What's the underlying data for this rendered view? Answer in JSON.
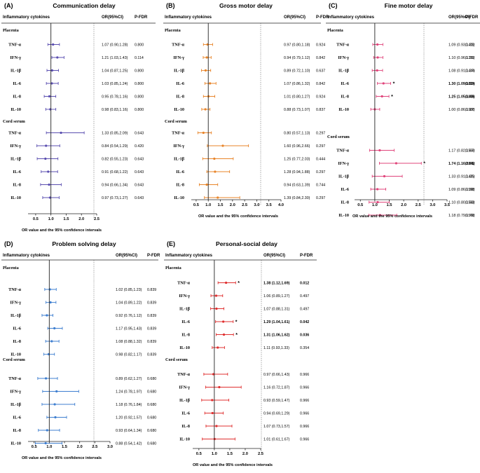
{
  "chart_data": [
    {
      "type": "forest",
      "panel_label": "(A)",
      "title": "Communication delay",
      "header": {
        "group": "Inflammatory cytokines",
        "or_col": "OR(95%CI)",
        "p_col": "P-FDR"
      },
      "xlabel": "OR value and the 95% confidence intervals",
      "xlim": [
        0.25,
        2.5
      ],
      "xticks": [
        "0.5",
        "1.0",
        "1.5",
        "2.0",
        "2.5"
      ],
      "color": "#5b4fb0",
      "sections": [
        {
          "name": "Placenta",
          "rows": [
            {
              "label": "TNF-α",
              "or": 1.07,
              "lo": 0.9,
              "hi": 1.28,
              "ci": "1.07 (0.90,1.28)",
              "p": "0.800",
              "bold": false
            },
            {
              "label": "IFN-γ",
              "or": 1.21,
              "lo": 1.03,
              "hi": 1.43,
              "ci": "1.21 (1.03,1.43)",
              "p": "0.114",
              "bold": false
            },
            {
              "label": "IL-1β",
              "or": 1.04,
              "lo": 0.87,
              "hi": 1.25,
              "ci": "1.04 (0.87,1.25)",
              "p": "0.800",
              "bold": false
            },
            {
              "label": "IL-6",
              "or": 1.03,
              "lo": 0.85,
              "hi": 1.24,
              "ci": "1.03 (0.85,1.24)",
              "p": "0.800",
              "bold": false
            },
            {
              "label": "IL-8",
              "or": 0.95,
              "lo": 0.78,
              "hi": 1.16,
              "ci": "0.95 (0.78,1.16)",
              "p": "0.800",
              "bold": false
            },
            {
              "label": "IL-10",
              "or": 0.98,
              "lo": 0.83,
              "hi": 1.16,
              "ci": "0.98 (0.83,1.16)",
              "p": "0.800",
              "bold": false
            }
          ]
        },
        {
          "name": "Cord serum",
          "rows": [
            {
              "label": "TNF-α",
              "or": 1.33,
              "lo": 0.85,
              "hi": 2.09,
              "ci": "1.33 (0.85,2.09)",
              "p": "0.643",
              "bold": false
            },
            {
              "label": "IFN-γ",
              "or": 0.84,
              "lo": 0.54,
              "hi": 1.29,
              "ci": "0.84 (0.54,1.29)",
              "p": "0.420",
              "bold": false
            },
            {
              "label": "IL-1β",
              "or": 0.82,
              "lo": 0.55,
              "hi": 1.23,
              "ci": "0.82 (0.55,1.23)",
              "p": "0.643",
              "bold": false
            },
            {
              "label": "IL-6",
              "or": 0.91,
              "lo": 0.68,
              "hi": 1.22,
              "ci": "0.91 (0.68,1.22)",
              "p": "0.643",
              "bold": false
            },
            {
              "label": "IL-8",
              "or": 0.94,
              "lo": 0.66,
              "hi": 1.34,
              "ci": "0.94 (0.66,1.34)",
              "p": "0.643",
              "bold": false
            },
            {
              "label": "IL-10",
              "or": 0.97,
              "lo": 0.73,
              "hi": 1.27,
              "ci": "0.97 (0.73,1.27)",
              "p": "0.643",
              "bold": false
            }
          ]
        }
      ]
    },
    {
      "type": "forest",
      "panel_label": "(B)",
      "title": "Gross motor delay",
      "header": {
        "group": "Inflammatory cytokines",
        "or_col": "OR(95%CI)",
        "p_col": "P-FDR"
      },
      "xlabel": "OR value and the 95% confidence intervals",
      "xlim": [
        0.3,
        4.0
      ],
      "xticks": [
        "0.5",
        "1.0",
        "1.5",
        "2.0",
        "2.5",
        "3.0",
        "3.5",
        "4.0"
      ],
      "color": "#e8852a",
      "sections": [
        {
          "name": "Placenta",
          "rows": [
            {
              "label": "TNF-α",
              "or": 0.97,
              "lo": 0.8,
              "hi": 1.18,
              "ci": "0.97 (0.80,1.18)",
              "p": "0.924",
              "bold": false
            },
            {
              "label": "IFN-γ",
              "or": 0.94,
              "lo": 0.79,
              "hi": 1.12,
              "ci": "0.94 (0.79,1.12)",
              "p": "0.842",
              "bold": false
            },
            {
              "label": "IL-1β",
              "or": 0.89,
              "lo": 0.72,
              "hi": 1.1,
              "ci": "0.89 (0.72,1.10)",
              "p": "0.637",
              "bold": false
            },
            {
              "label": "IL-6",
              "or": 1.07,
              "lo": 0.86,
              "hi": 1.32,
              "ci": "1.07 (0.86,1.32)",
              "p": "0.842",
              "bold": false
            },
            {
              "label": "IL-8",
              "or": 1.01,
              "lo": 0.8,
              "hi": 1.27,
              "ci": "1.01 (0.80,1.27)",
              "p": "0.924",
              "bold": false
            },
            {
              "label": "IL-10",
              "or": 0.88,
              "lo": 0.73,
              "hi": 1.07,
              "ci": "0.88 (0.73,1.07)",
              "p": "0.837",
              "bold": false
            }
          ]
        },
        {
          "name": "Cord serum",
          "rows": [
            {
              "label": "TNF-α",
              "or": 0.8,
              "lo": 0.57,
              "hi": 1.13,
              "ci": "0.80 (0.57,1.13)",
              "p": "0.297",
              "bold": false
            },
            {
              "label": "IFN-γ",
              "or": 1.6,
              "lo": 0.96,
              "hi": 2.66,
              "ci": "1.60 (0.96,2.66)",
              "p": "0.297",
              "bold": false
            },
            {
              "label": "IL-1β",
              "or": 1.25,
              "lo": 0.77,
              "hi": 2.03,
              "ci": "1.25 (0.77,2.03)",
              "p": "0.444",
              "bold": false
            },
            {
              "label": "IL-6",
              "or": 1.28,
              "lo": 0.94,
              "hi": 1.88,
              "ci": "1.28 (0.94,1.88)",
              "p": "0.297",
              "bold": false
            },
            {
              "label": "IL-8",
              "or": 0.94,
              "lo": 0.63,
              "hi": 1.39,
              "ci": "0.94 (0.63,1.39)",
              "p": "0.744",
              "bold": false
            },
            {
              "label": "IL-10",
              "or": 1.39,
              "lo": 0.84,
              "hi": 2.3,
              "ci": "1.39 (0.84,2.30)",
              "p": "0.297",
              "bold": false
            }
          ]
        }
      ]
    },
    {
      "type": "forest",
      "panel_label": "(C)",
      "title": "Fine motor delay",
      "header": {
        "group": "Inflammatory cytokines",
        "or_col": "OR(95%CI)",
        "p_col": "P-FDR"
      },
      "xlabel": "OR value and the 95% confidence intervals",
      "xlim": [
        0.3,
        3.5
      ],
      "xticks": [
        "0.5",
        "1.0",
        "1.5",
        "2.0",
        "2.5",
        "3.0",
        "3.5"
      ],
      "color": "#e0457b",
      "star": "*",
      "sections": [
        {
          "name": "Placenta",
          "rows": [
            {
              "label": "TNF-α",
              "or": 1.09,
              "lo": 0.93,
              "hi": 1.28,
              "ci": "1.09 (0.93,1.28)",
              "p": "0.402",
              "bold": false
            },
            {
              "label": "IFN-γ",
              "or": 1.1,
              "lo": 0.96,
              "hi": 1.28,
              "ci": "1.10 (0.96,1.28)",
              "p": "0.352",
              "bold": false
            },
            {
              "label": "IL-1β",
              "or": 1.08,
              "lo": 0.91,
              "hi": 1.27,
              "ci": "1.08 (0.91,1.27)",
              "p": "0.444",
              "bold": false
            },
            {
              "label": "IL-6",
              "or": 1.3,
              "lo": 1.09,
              "hi": 1.55,
              "ci": "1.30 (1.09,1.55)",
              "p": "0.024",
              "bold": true
            },
            {
              "label": "IL-8",
              "or": 1.25,
              "lo": 1.05,
              "hi": 1.49,
              "ci": "1.25 (1.05,1.49)",
              "p": "0.036",
              "bold": true
            },
            {
              "label": "IL-10",
              "or": 1.0,
              "lo": 0.86,
              "hi": 1.17,
              "ci": "1.00 (0.86,1.17)",
              "p": "0.988",
              "bold": false
            }
          ]
        },
        {
          "name": "Cord serum",
          "rows": [
            {
              "label": "TNF-α",
              "or": 1.17,
              "lo": 0.82,
              "hi": 1.67,
              "ci": "1.17 (0.82,1.67)",
              "p": "0.568",
              "bold": false
            },
            {
              "label": "IFN-γ",
              "or": 1.74,
              "lo": 1.16,
              "hi": 2.61,
              "ci": "1.74 (1.16,2.61)",
              "p": "0.042",
              "bold": true
            },
            {
              "label": "IL-1β",
              "or": 1.33,
              "lo": 0.91,
              "hi": 1.95,
              "ci": "1.33 (0.91,1.95)",
              "p": "0.429",
              "bold": false
            },
            {
              "label": "IL-6",
              "or": 1.09,
              "lo": 0.86,
              "hi": 1.38,
              "ci": "1.09 (0.86,1.38)",
              "p": "0.568",
              "bold": false
            },
            {
              "label": "IL-8",
              "or": 1.1,
              "lo": 0.8,
              "hi": 1.5,
              "ci": "1.10 (0.80,1.50)",
              "p": "0.568",
              "bold": false
            },
            {
              "label": "IL-10",
              "or": 1.18,
              "lo": 0.79,
              "hi": 1.76,
              "ci": "1.18 (0.79,1.76)",
              "p": "0.568",
              "bold": false
            }
          ]
        }
      ]
    },
    {
      "type": "forest",
      "panel_label": "(D)",
      "title": "Problem solving delay",
      "header": {
        "group": "Inflammatory cytokines",
        "or_col": "OR(95%CI)",
        "p_col": "P-FDR"
      },
      "xlabel": "OR value and the 95% confidence intervals",
      "xlim": [
        0.3,
        3.0
      ],
      "xticks": [
        "0.5",
        "1.0",
        "1.5",
        "2.0",
        "2.5",
        "3.0"
      ],
      "color": "#3f7fd0",
      "sections": [
        {
          "name": "Placenta",
          "rows": [
            {
              "label": "TNF-α",
              "or": 1.02,
              "lo": 0.85,
              "hi": 1.23,
              "ci": "1.02 (0.85,1.23)",
              "p": "0.839",
              "bold": false
            },
            {
              "label": "IFN-γ",
              "or": 1.04,
              "lo": 0.89,
              "hi": 1.22,
              "ci": "1.04 (0.89,1.22)",
              "p": "0.839",
              "bold": false
            },
            {
              "label": "IL-1β",
              "or": 0.92,
              "lo": 0.76,
              "hi": 1.12,
              "ci": "0.92 (0.76,1.12)",
              "p": "0.839",
              "bold": false
            },
            {
              "label": "IL-6",
              "or": 1.17,
              "lo": 0.95,
              "hi": 1.43,
              "ci": "1.17 (0.95,1.43)",
              "p": "0.839",
              "bold": false
            },
            {
              "label": "IL-8",
              "or": 1.08,
              "lo": 0.88,
              "hi": 1.32,
              "ci": "1.08 (0.88,1.32)",
              "p": "0.839",
              "bold": false
            },
            {
              "label": "IL-10",
              "or": 0.98,
              "lo": 0.82,
              "hi": 1.17,
              "ci": "0.98 (0.82,1.17)",
              "p": "0.839",
              "bold": false
            }
          ]
        },
        {
          "name": "Cord serum",
          "rows": [
            {
              "label": "TNF-α",
              "or": 0.89,
              "lo": 0.62,
              "hi": 1.27,
              "ci": "0.89 (0.62,1.27)",
              "p": "0.680",
              "bold": false
            },
            {
              "label": "IFN-γ",
              "or": 1.24,
              "lo": 0.78,
              "hi": 1.97,
              "ci": "1.24 (0.78,1.97)",
              "p": "0.680",
              "bold": false
            },
            {
              "label": "IL-1β",
              "or": 1.18,
              "lo": 0.76,
              "hi": 1.84,
              "ci": "1.18 (0.76,1.84)",
              "p": "0.680",
              "bold": false
            },
            {
              "label": "IL-6",
              "or": 1.2,
              "lo": 0.92,
              "hi": 1.57,
              "ci": "1.20 (0.92,1.57)",
              "p": "0.680",
              "bold": false
            },
            {
              "label": "IL-8",
              "or": 0.93,
              "lo": 0.64,
              "hi": 1.34,
              "ci": "0.93 (0.64,1.34)",
              "p": "0.680",
              "bold": false
            },
            {
              "label": "IL-10",
              "or": 0.88,
              "lo": 0.54,
              "hi": 1.42,
              "ci": "0.88 (0.54,1.42)",
              "p": "0.680",
              "bold": false
            }
          ]
        }
      ]
    },
    {
      "type": "forest",
      "panel_label": "(E)",
      "title": "Personal-social delay",
      "header": {
        "group": "Inflammatory cytokines",
        "or_col": "OR(95%CI)",
        "p_col": "P-FDR"
      },
      "xlabel": "OR value and the 95% confidence intervals",
      "xlim": [
        0.3,
        2.5
      ],
      "xticks": [
        "0.5",
        "1.0",
        "1.5",
        "2.0",
        "2.5"
      ],
      "color": "#e03030",
      "star": "*",
      "sections": [
        {
          "name": "Placenta",
          "rows": [
            {
              "label": "TNF-α",
              "or": 1.38,
              "lo": 1.12,
              "hi": 1.69,
              "ci": "1.38 (1.12,1.69)",
              "p": "0.012",
              "bold": true
            },
            {
              "label": "IFN-γ",
              "or": 1.06,
              "lo": 0.89,
              "hi": 1.27,
              "ci": "1.06 (0.89,1.27)",
              "p": "0.497",
              "bold": false
            },
            {
              "label": "IL-1β",
              "or": 1.07,
              "lo": 0.88,
              "hi": 1.31,
              "ci": "1.07 (0.88,1.31)",
              "p": "0.497",
              "bold": false
            },
            {
              "label": "IL-6",
              "or": 1.29,
              "lo": 1.04,
              "hi": 1.61,
              "ci": "1.29 (1.04,1.61)",
              "p": "0.042",
              "bold": true
            },
            {
              "label": "IL-8",
              "or": 1.31,
              "lo": 1.06,
              "hi": 1.62,
              "ci": "1.31 (1.06,1.62)",
              "p": "0.036",
              "bold": true
            },
            {
              "label": "IL-10",
              "or": 1.11,
              "lo": 0.93,
              "hi": 1.33,
              "ci": "1.11 (0.93,1.33)",
              "p": "0.354",
              "bold": false
            }
          ]
        },
        {
          "name": "Cord serum",
          "rows": [
            {
              "label": "TNF-α",
              "or": 0.97,
              "lo": 0.66,
              "hi": 1.43,
              "ci": "0.97 (0.66,1.43)",
              "p": "0.966",
              "bold": false
            },
            {
              "label": "IFN-γ",
              "or": 1.16,
              "lo": 0.72,
              "hi": 1.87,
              "ci": "1.16 (0.72,1.87)",
              "p": "0.966",
              "bold": false
            },
            {
              "label": "IL-1β",
              "or": 0.93,
              "lo": 0.59,
              "hi": 1.47,
              "ci": "0.93 (0.59,1.47)",
              "p": "0.966",
              "bold": false
            },
            {
              "label": "IL-6",
              "or": 0.94,
              "lo": 0.69,
              "hi": 1.29,
              "ci": "0.94 (0.69,1.29)",
              "p": "0.966",
              "bold": false
            },
            {
              "label": "IL-8",
              "or": 1.07,
              "lo": 0.73,
              "hi": 1.57,
              "ci": "1.07 (0.73,1.57)",
              "p": "0.966",
              "bold": false
            },
            {
              "label": "IL-10",
              "or": 1.01,
              "lo": 0.61,
              "hi": 1.67,
              "ci": "1.01 (0.61,1.67)",
              "p": "0.966",
              "bold": false
            }
          ]
        }
      ]
    }
  ]
}
